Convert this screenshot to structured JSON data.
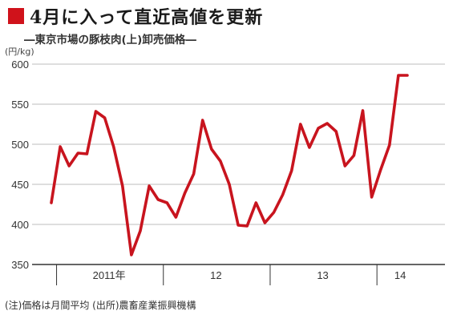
{
  "title": "4月に入って直近高値を更新",
  "subtitle": "―東京市場の豚枝肉(上)卸売価格―",
  "unit": "(円/kg)",
  "footnote": "(注)価格は月間平均 (出所)農畜産業振興機構",
  "colors": {
    "accent": "#d0121b",
    "line": "#c8141e",
    "grid": "#bdbdbd",
    "axis": "#333333"
  },
  "chart_data": {
    "type": "line",
    "title": "4月に入って直近高値を更新",
    "ylabel": "(円/kg)",
    "xlabel": "",
    "ylim": [
      350,
      600
    ],
    "yticks": [
      350,
      400,
      450,
      500,
      550,
      600
    ],
    "grid": true,
    "year_labels": [
      "2011年",
      "12",
      "13",
      "14"
    ],
    "x": [
      "2010-12",
      "2011-01",
      "2011-02",
      "2011-03",
      "2011-04",
      "2011-05",
      "2011-06",
      "2011-07",
      "2011-08",
      "2011-09",
      "2011-10",
      "2011-11",
      "2011-12",
      "2012-01",
      "2012-02",
      "2012-03",
      "2012-04",
      "2012-05",
      "2012-06",
      "2012-07",
      "2012-08",
      "2012-09",
      "2012-10",
      "2012-11",
      "2012-12",
      "2013-01",
      "2013-02",
      "2013-03",
      "2013-04",
      "2013-05",
      "2013-06",
      "2013-07",
      "2013-08",
      "2013-09",
      "2013-10",
      "2013-11",
      "2013-12",
      "2014-01",
      "2014-02",
      "2014-03",
      "2014-04"
    ],
    "values": [
      427,
      497,
      473,
      489,
      488,
      541,
      533,
      497,
      448,
      362,
      392,
      448,
      431,
      427,
      409,
      439,
      463,
      530,
      494,
      479,
      450,
      399,
      398,
      427,
      402,
      415,
      437,
      467,
      525,
      496,
      520,
      526,
      516,
      473,
      486,
      542,
      434,
      468,
      499,
      586,
      586
    ]
  }
}
